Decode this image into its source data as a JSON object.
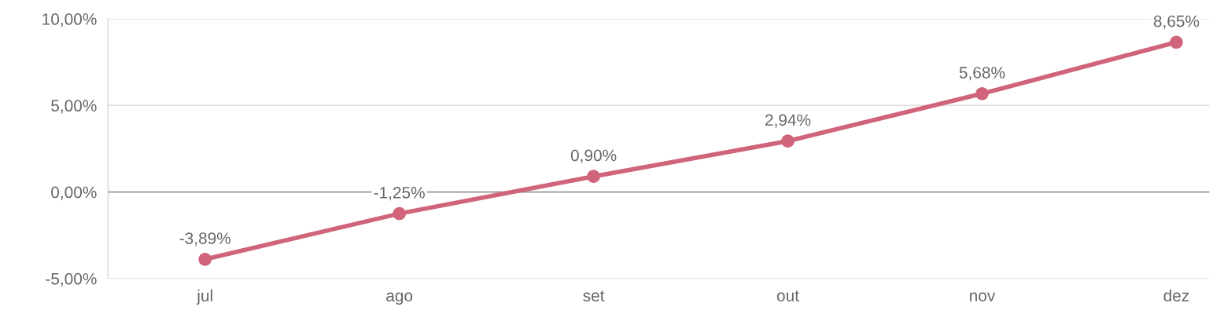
{
  "chart_data": {
    "type": "line",
    "categories": [
      "jul",
      "ago",
      "set",
      "out",
      "nov",
      "dez"
    ],
    "series": [
      {
        "color": "#d0647a",
        "values": [
          -3.89,
          -1.25,
          0.9,
          2.94,
          5.68,
          8.65
        ],
        "value_labels": [
          "-3,89%",
          "-1,25%",
          "0,90%",
          "2,94%",
          "5,68%",
          "8,65%"
        ]
      }
    ],
    "ylim": [
      -5,
      10
    ],
    "yticks": [
      {
        "value": -5,
        "label": "-5,00%"
      },
      {
        "value": 0,
        "label": "0,00%"
      },
      {
        "value": 5,
        "label": "5,00%"
      },
      {
        "value": 10,
        "label": "10,00%"
      }
    ],
    "ref_lines": [
      {
        "axis": "y",
        "value": 0,
        "color": "#999999"
      }
    ],
    "grid": "y",
    "marker": "circle",
    "line_style": "solid"
  }
}
